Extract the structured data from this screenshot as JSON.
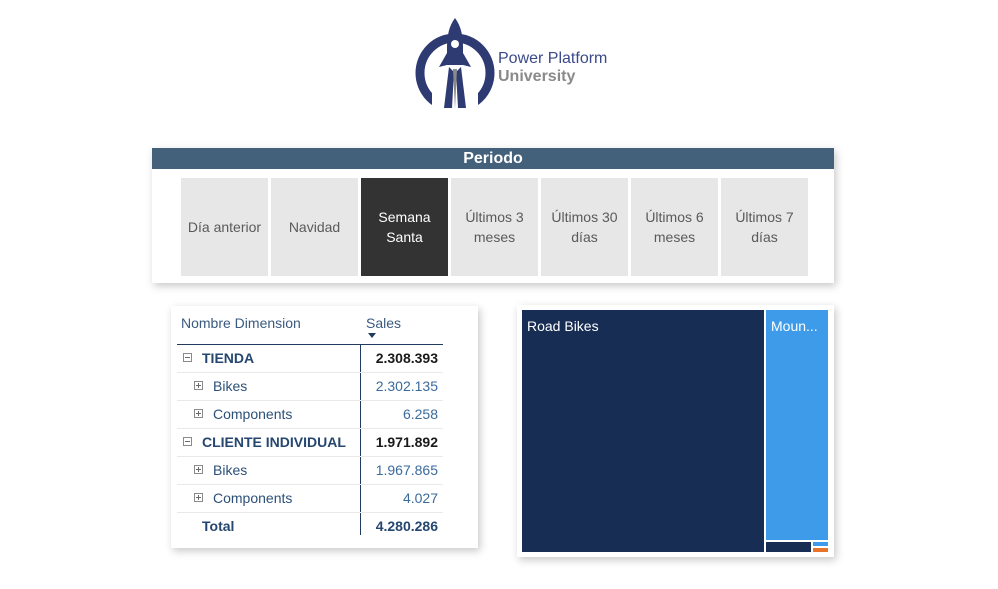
{
  "brand": {
    "line1": "Power Platform",
    "line2": "University"
  },
  "slicer": {
    "title": "Periodo",
    "options": [
      {
        "label": "Día anterior",
        "selected": false
      },
      {
        "label": "Navidad",
        "selected": false
      },
      {
        "label": "Semana Santa",
        "selected": true
      },
      {
        "label": "Últimos 3 meses",
        "selected": false
      },
      {
        "label": "Últimos 30 días",
        "selected": false
      },
      {
        "label": "Últimos 6 meses",
        "selected": false
      },
      {
        "label": "Últimos 7 días",
        "selected": false
      }
    ]
  },
  "matrix": {
    "headers": {
      "dimension": "Nombre Dimension",
      "sales": "Sales"
    },
    "sort": "descending",
    "rows": [
      {
        "label": "TIENDA",
        "value": "2.308.393",
        "level": 0,
        "expanded": true
      },
      {
        "label": "Bikes",
        "value": "2.302.135",
        "level": 1,
        "expanded": false
      },
      {
        "label": "Components",
        "value": "6.258",
        "level": 1,
        "expanded": false
      },
      {
        "label": "CLIENTE INDIVIDUAL",
        "value": "1.971.892",
        "level": 0,
        "expanded": true
      },
      {
        "label": "Bikes",
        "value": "1.967.865",
        "level": 1,
        "expanded": false
      },
      {
        "label": "Components",
        "value": "4.027",
        "level": 1,
        "expanded": false
      }
    ],
    "total": {
      "label": "Total",
      "value": "4.280.286"
    }
  },
  "treemap": {
    "colors": {
      "road": "#172d54",
      "mountain": "#3d9be9",
      "small_dark": "#172d54",
      "small_light": "#3d9be9",
      "small_orange": "#e8742a"
    },
    "cells": [
      {
        "label": "Road Bikes",
        "color_key": "road"
      },
      {
        "label": "Mountain Bikes",
        "display": "Moun...",
        "color_key": "mountain"
      }
    ]
  }
}
